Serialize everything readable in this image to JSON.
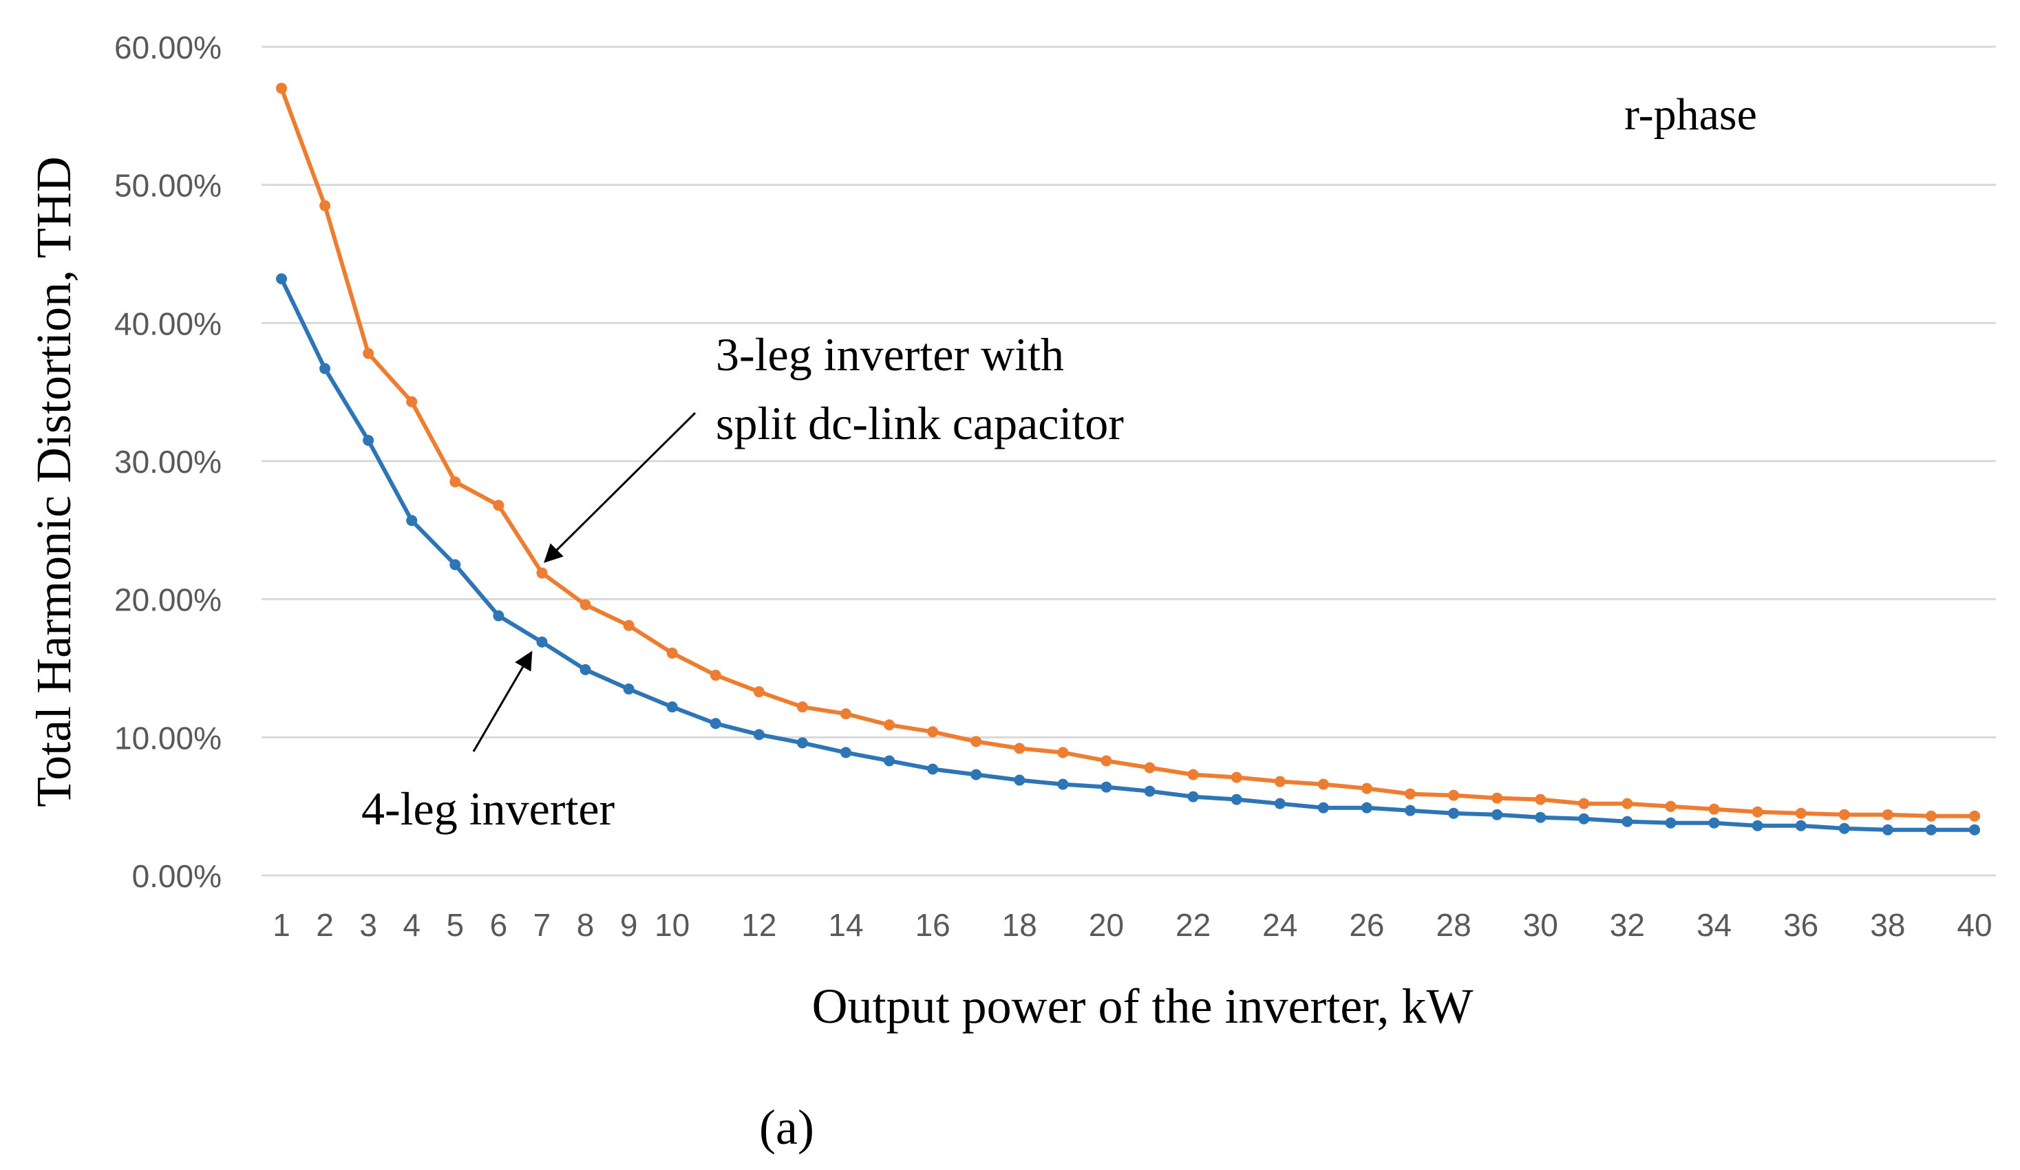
{
  "chart_data": {
    "type": "line",
    "title": "",
    "annotation_label": "r-phase",
    "xlabel": "Output power of the inverter, kW",
    "ylabel": "Total Harmonic Distortion, THD",
    "caption": "(a)",
    "xlim": [
      1,
      40
    ],
    "ylim": [
      0,
      60
    ],
    "y_ticks": [
      0,
      10,
      20,
      30,
      40,
      50,
      60
    ],
    "y_tick_labels": [
      "0.00%",
      "10.00%",
      "20.00%",
      "30.00%",
      "40.00%",
      "50.00%",
      "60.00%"
    ],
    "x_tick_labels": [
      "1",
      "2",
      "3",
      "4",
      "5",
      "6",
      "7",
      "8",
      "9",
      "10",
      "12",
      "14",
      "16",
      "18",
      "20",
      "22",
      "24",
      "26",
      "28",
      "30",
      "32",
      "34",
      "36",
      "38",
      "40"
    ],
    "grid": true,
    "x": [
      1,
      2,
      3,
      4,
      5,
      6,
      7,
      8,
      9,
      10,
      11,
      12,
      13,
      14,
      15,
      16,
      17,
      18,
      19,
      20,
      21,
      22,
      23,
      24,
      25,
      26,
      27,
      28,
      29,
      30,
      31,
      32,
      33,
      34,
      35,
      36,
      37,
      38,
      39,
      40
    ],
    "series": [
      {
        "name": "3-leg inverter with split dc-link capacitor",
        "label_lines": [
          "3-leg inverter with",
          "split dc-link capacitor"
        ],
        "color": "#ED7D31",
        "values": [
          57.0,
          48.5,
          37.8,
          34.3,
          28.5,
          26.8,
          21.9,
          19.6,
          18.1,
          16.1,
          14.5,
          13.3,
          12.2,
          11.7,
          10.9,
          10.4,
          9.7,
          9.2,
          8.9,
          8.3,
          7.8,
          7.3,
          7.1,
          6.8,
          6.6,
          6.3,
          5.9,
          5.8,
          5.6,
          5.5,
          5.2,
          5.2,
          5.0,
          4.8,
          4.6,
          4.5,
          4.4,
          4.4,
          4.3,
          4.3
        ]
      },
      {
        "name": "4-leg inverter",
        "label_lines": [
          "4-leg inverter"
        ],
        "color": "#2E75B6",
        "values": [
          43.2,
          36.7,
          31.5,
          25.7,
          22.5,
          18.8,
          16.9,
          14.9,
          13.5,
          12.2,
          11.0,
          10.2,
          9.6,
          8.9,
          8.3,
          7.7,
          7.3,
          6.9,
          6.6,
          6.4,
          6.1,
          5.7,
          5.5,
          5.2,
          4.9,
          4.9,
          4.7,
          4.5,
          4.4,
          4.2,
          4.1,
          3.9,
          3.8,
          3.8,
          3.6,
          3.6,
          3.4,
          3.3,
          3.3,
          3.3
        ]
      }
    ]
  }
}
